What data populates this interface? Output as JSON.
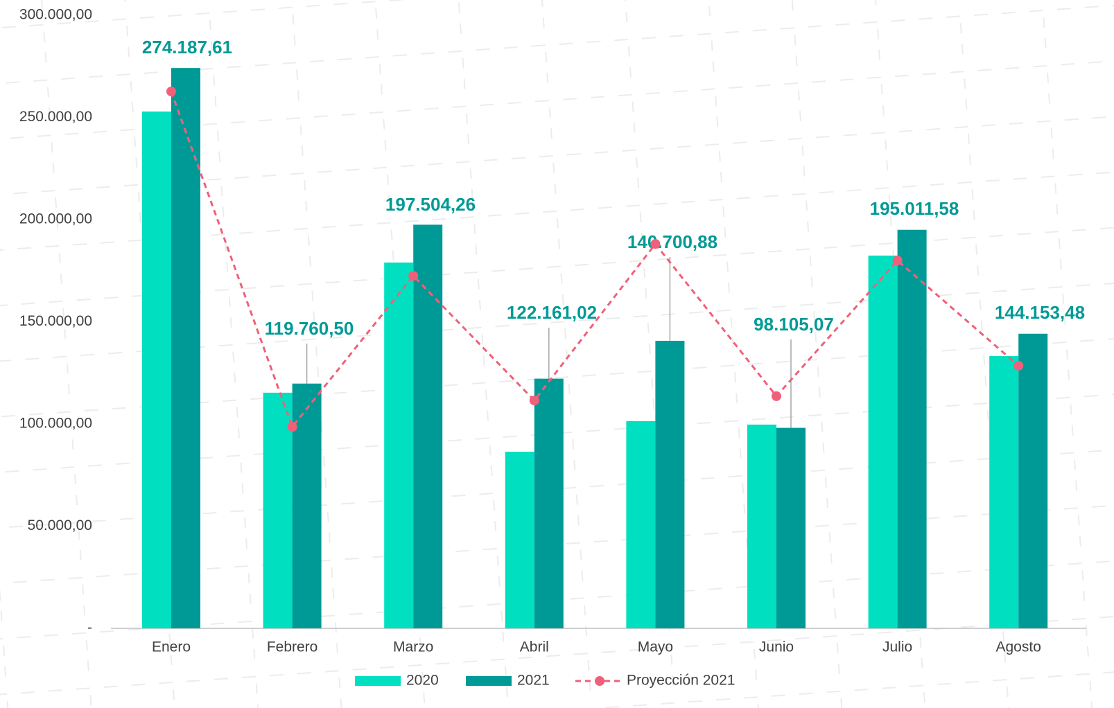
{
  "chart_data": {
    "type": "bar",
    "categories": [
      "Enero",
      "Febrero",
      "Marzo",
      "Abril",
      "Mayo",
      "Junio",
      "Julio",
      "Agosto"
    ],
    "series": [
      {
        "name": "2020",
        "color": "#00dfbf",
        "values": [
          252900,
          115300,
          179000,
          86400,
          101400,
          99700,
          182400,
          133200
        ]
      },
      {
        "name": "2021",
        "color": "#009a96",
        "values": [
          274187.61,
          119760.5,
          197504.26,
          122161.02,
          140700.88,
          98105.07,
          195011.58,
          144153.48
        ],
        "value_labels": [
          "274.187,61",
          "119.760,50",
          "197.504,26",
          "122.161,02",
          "140.700,88",
          "98.105,07",
          "195.011,58",
          "144.153,48"
        ]
      },
      {
        "name": "Proyección 2021",
        "type": "line",
        "color": "#f0607a",
        "values": [
          262700,
          98600,
          172500,
          111500,
          188100,
          113600,
          180000,
          128500
        ]
      }
    ],
    "ylim": [
      0,
      300000
    ],
    "yticks": [
      {
        "value": 0,
        "label": "-"
      },
      {
        "value": 50000,
        "label": "50.000,00"
      },
      {
        "value": 100000,
        "label": "100.000,00"
      },
      {
        "value": 150000,
        "label": "150.000,00"
      },
      {
        "value": 200000,
        "label": "200.000,00"
      },
      {
        "value": 250000,
        "label": "250.000,00"
      },
      {
        "value": 300000,
        "label": "300.000,00"
      }
    ],
    "grid": false,
    "legend": "bottom"
  }
}
